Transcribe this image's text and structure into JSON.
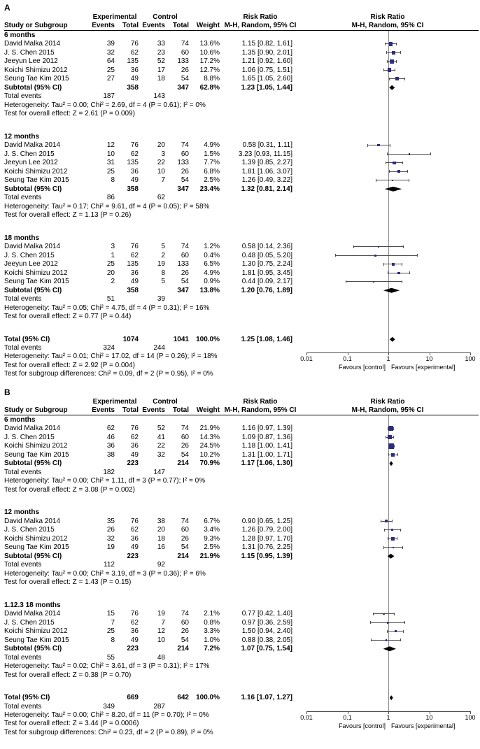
{
  "chart_data": [
    {
      "type": "forest_plot",
      "panel": "A",
      "effect_measure": "Risk Ratio",
      "header": {
        "experimental": "Experimental",
        "control": "Control",
        "risk_ratio": "Risk Ratio",
        "study": "Study or Subgroup",
        "events": "Events",
        "total": "Total",
        "weight": "Weight",
        "ci": "M-H, Random, 95% CI"
      },
      "axis": {
        "scale": "log",
        "ticks": [
          0.01,
          0.1,
          1,
          10,
          100
        ],
        "favours_left": "Favours [control]",
        "favours_right": "Favours [experimental]"
      },
      "rows": [
        {
          "k": "title",
          "t": "6 months"
        },
        {
          "k": "study",
          "n": "David Malka 2014",
          "ee": 39,
          "et": 76,
          "ce": 33,
          "ct": 74,
          "w": "13.6%",
          "ci": "1.15 [0.82, 1.61]",
          "v": 1.15,
          "lo": 0.82,
          "hi": 1.61,
          "wt": 13.6
        },
        {
          "k": "study",
          "n": "J. S. Chen 2015",
          "ee": 32,
          "et": 62,
          "ce": 23,
          "ct": 60,
          "w": "10.6%",
          "ci": "1.35 [0.90, 2.01]",
          "v": 1.35,
          "lo": 0.9,
          "hi": 2.01,
          "wt": 10.6
        },
        {
          "k": "study",
          "n": "Jeeyun Lee 2012",
          "ee": 64,
          "et": 135,
          "ce": 52,
          "ct": 133,
          "w": "17.2%",
          "ci": "1.21 [0.92, 1.60]",
          "v": 1.21,
          "lo": 0.92,
          "hi": 1.6,
          "wt": 17.2
        },
        {
          "k": "study",
          "n": "Koichi Shimizu 2012",
          "ee": 25,
          "et": 36,
          "ce": 17,
          "ct": 26,
          "w": "12.7%",
          "ci": "1.06 [0.75, 1.51]",
          "v": 1.06,
          "lo": 0.75,
          "hi": 1.51,
          "wt": 12.7
        },
        {
          "k": "study",
          "n": "Seung Tae Kim 2015",
          "ee": 27,
          "et": 49,
          "ce": 18,
          "ct": 54,
          "w": "8.8%",
          "ci": "1.65 [1.05, 2.60]",
          "v": 1.65,
          "lo": 1.05,
          "hi": 2.6,
          "wt": 8.8
        },
        {
          "k": "subtotal",
          "n": "Subtotal (95% CI)",
          "et": 358,
          "ct": 347,
          "w": "62.8%",
          "ci": "1.23 [1.05, 1.44]",
          "v": 1.23,
          "lo": 1.05,
          "hi": 1.44
        },
        {
          "k": "events",
          "n": "Total events",
          "ee": 187,
          "ce": 143
        },
        {
          "k": "note",
          "t": "Heterogeneity: Tau² = 0.00; Chi² = 2.69, df = 4 (P = 0.61); I² = 0%"
        },
        {
          "k": "note",
          "t": "Test for overall effect: Z = 2.61 (P = 0.009)"
        },
        {
          "k": "spacer"
        },
        {
          "k": "title",
          "t": "12 months"
        },
        {
          "k": "study",
          "n": "David Malka 2014",
          "ee": 12,
          "et": 76,
          "ce": 20,
          "ct": 74,
          "w": "4.9%",
          "ci": "0.58 [0.31, 1.11]",
          "v": 0.58,
          "lo": 0.31,
          "hi": 1.11,
          "wt": 4.9
        },
        {
          "k": "study",
          "n": "J. S. Chen 2015",
          "ee": 10,
          "et": 62,
          "ce": 3,
          "ct": 60,
          "w": "1.5%",
          "ci": "3.23 [0.93, 11.15]",
          "v": 3.23,
          "lo": 0.93,
          "hi": 11.15,
          "wt": 1.5
        },
        {
          "k": "study",
          "n": "Jeeyun Lee 2012",
          "ee": 31,
          "et": 135,
          "ce": 22,
          "ct": 133,
          "w": "7.7%",
          "ci": "1.39 [0.85, 2.27]",
          "v": 1.39,
          "lo": 0.85,
          "hi": 2.27,
          "wt": 7.7
        },
        {
          "k": "study",
          "n": "Koichi Shimizu 2012",
          "ee": 25,
          "et": 36,
          "ce": 10,
          "ct": 26,
          "w": "6.8%",
          "ci": "1.81 [1.06, 3.07]",
          "v": 1.81,
          "lo": 1.06,
          "hi": 3.07,
          "wt": 6.8
        },
        {
          "k": "study",
          "n": "Seung Tae Kim 2015",
          "ee": 8,
          "et": 49,
          "ce": 7,
          "ct": 54,
          "w": "2.5%",
          "ci": "1.26 [0.49, 3.22]",
          "v": 1.26,
          "lo": 0.49,
          "hi": 3.22,
          "wt": 2.5
        },
        {
          "k": "subtotal",
          "n": "Subtotal (95% CI)",
          "et": 358,
          "ct": 347,
          "w": "23.4%",
          "ci": "1.32 [0.81, 2.14]",
          "v": 1.32,
          "lo": 0.81,
          "hi": 2.14
        },
        {
          "k": "events",
          "n": "Total events",
          "ee": 86,
          "ce": 62
        },
        {
          "k": "note",
          "t": "Heterogeneity: Tau² = 0.17; Chi² = 9.61, df = 4 (P = 0.05); I² = 58%"
        },
        {
          "k": "note",
          "t": "Test for overall effect: Z = 1.13 (P = 0.26)"
        },
        {
          "k": "spacer"
        },
        {
          "k": "title",
          "t": "18 months"
        },
        {
          "k": "study",
          "n": "David Malka 2014",
          "ee": 3,
          "et": 76,
          "ce": 5,
          "ct": 74,
          "w": "1.2%",
          "ci": "0.58 [0.14, 2.36]",
          "v": 0.58,
          "lo": 0.14,
          "hi": 2.36,
          "wt": 1.2
        },
        {
          "k": "study",
          "n": "J. S. Chen 2015",
          "ee": 1,
          "et": 62,
          "ce": 2,
          "ct": 60,
          "w": "0.4%",
          "ci": "0.48 [0.05, 5.20]",
          "v": 0.48,
          "lo": 0.05,
          "hi": 5.2,
          "wt": 0.4
        },
        {
          "k": "study",
          "n": "Jeeyun Lee 2012",
          "ee": 25,
          "et": 135,
          "ce": 19,
          "ct": 133,
          "w": "6.5%",
          "ci": "1.30 [0.75, 2.24]",
          "v": 1.3,
          "lo": 0.75,
          "hi": 2.24,
          "wt": 6.5
        },
        {
          "k": "study",
          "n": "Koichi Shimizu 2012",
          "ee": 20,
          "et": 36,
          "ce": 8,
          "ct": 26,
          "w": "4.9%",
          "ci": "1.81 [0.95, 3.45]",
          "v": 1.81,
          "lo": 0.95,
          "hi": 3.45,
          "wt": 4.9
        },
        {
          "k": "study",
          "n": "Seung Tae Kim 2015",
          "ee": 2,
          "et": 49,
          "ce": 5,
          "ct": 54,
          "w": "0.9%",
          "ci": "0.44 [0.09, 2.17]",
          "v": 0.44,
          "lo": 0.09,
          "hi": 2.17,
          "wt": 0.9
        },
        {
          "k": "subtotal",
          "n": "Subtotal (95% CI)",
          "et": 358,
          "ct": 347,
          "w": "13.8%",
          "ci": "1.20 [0.76, 1.89]",
          "v": 1.2,
          "lo": 0.76,
          "hi": 1.89
        },
        {
          "k": "events",
          "n": "Total events",
          "ee": 51,
          "ce": 39
        },
        {
          "k": "note",
          "t": "Heterogeneity: Tau² = 0.05; Chi² = 4.75, df = 4 (P = 0.31); I² = 16%"
        },
        {
          "k": "note",
          "t": "Test for overall effect: Z = 0.77 (P = 0.44)"
        },
        {
          "k": "spacer"
        },
        {
          "k": "total",
          "n": "Total (95% CI)",
          "et": 1074,
          "ct": 1041,
          "w": "100.0%",
          "ci": "1.25 [1.08, 1.46]",
          "v": 1.25,
          "lo": 1.08,
          "hi": 1.46
        },
        {
          "k": "events",
          "n": "Total events",
          "ee": 324,
          "ce": 244
        }
      ],
      "footnotes": [
        "Heterogeneity: Tau² = 0.01; Chi² = 17.02, df = 14 (P = 0.26); I² = 18%",
        "Test for overall effect: Z = 2.92 (P = 0.004)",
        "Test for subgroup differences: Chi² = 0.09, df = 2 (P = 0.95), I² = 0%"
      ]
    },
    {
      "type": "forest_plot",
      "panel": "B",
      "effect_measure": "Risk Ratio",
      "header": {
        "experimental": "Experimental",
        "control": "Control",
        "risk_ratio": "Risk Ratio",
        "study": "Study or Subgroup",
        "events": "Events",
        "total": "Total",
        "weight": "Weight",
        "ci": "M-H, Random, 95% CI"
      },
      "axis": {
        "scale": "log",
        "ticks": [
          0.01,
          0.1,
          1,
          10,
          100
        ],
        "favours_left": "Favours [control]",
        "favours_right": "Favours [experimental]"
      },
      "rows": [
        {
          "k": "title",
          "t": "6 months"
        },
        {
          "k": "study",
          "n": "David Malka 2014",
          "ee": 62,
          "et": 76,
          "ce": 52,
          "ct": 74,
          "w": "21.9%",
          "ci": "1.16 [0.97, 1.39]",
          "v": 1.16,
          "lo": 0.97,
          "hi": 1.39,
          "wt": 21.9
        },
        {
          "k": "study",
          "n": "J. S. Chen 2015",
          "ee": 46,
          "et": 62,
          "ce": 41,
          "ct": 60,
          "w": "14.3%",
          "ci": "1.09 [0.87, 1.36]",
          "v": 1.09,
          "lo": 0.87,
          "hi": 1.36,
          "wt": 14.3
        },
        {
          "k": "study",
          "n": "Koichi Shimizu 2012",
          "ee": 36,
          "et": 36,
          "ce": 22,
          "ct": 26,
          "w": "24.5%",
          "ci": "1.18 [1.00, 1.41]",
          "v": 1.18,
          "lo": 1.0,
          "hi": 1.41,
          "wt": 24.5
        },
        {
          "k": "study",
          "n": "Seung Tae Kim 2015",
          "ee": 38,
          "et": 49,
          "ce": 32,
          "ct": 54,
          "w": "10.2%",
          "ci": "1.31 [1.00, 1.71]",
          "v": 1.31,
          "lo": 1.0,
          "hi": 1.71,
          "wt": 10.2
        },
        {
          "k": "subtotal",
          "n": "Subtotal (95% CI)",
          "et": 223,
          "ct": 214,
          "w": "70.9%",
          "ci": "1.17 [1.06, 1.30]",
          "v": 1.17,
          "lo": 1.06,
          "hi": 1.3
        },
        {
          "k": "events",
          "n": "Total events",
          "ee": 182,
          "ce": 147
        },
        {
          "k": "note",
          "t": "Heterogeneity: Tau² = 0.00; Chi² = 1.11, df = 3 (P = 0.77); I² = 0%"
        },
        {
          "k": "note",
          "t": "Test for overall effect: Z = 3.08 (P = 0.002)"
        },
        {
          "k": "spacer"
        },
        {
          "k": "title",
          "t": "12 months"
        },
        {
          "k": "study",
          "n": "David Malka 2014",
          "ee": 35,
          "et": 76,
          "ce": 38,
          "ct": 74,
          "w": "6.7%",
          "ci": "0.90 [0.65, 1.25]",
          "v": 0.9,
          "lo": 0.65,
          "hi": 1.25,
          "wt": 6.7
        },
        {
          "k": "study",
          "n": "J. S. Chen 2015",
          "ee": 26,
          "et": 62,
          "ce": 20,
          "ct": 60,
          "w": "3.4%",
          "ci": "1.26 [0.79, 2.00]",
          "v": 1.26,
          "lo": 0.79,
          "hi": 2.0,
          "wt": 3.4
        },
        {
          "k": "study",
          "n": "Koichi Shimizu 2012",
          "ee": 32,
          "et": 36,
          "ce": 18,
          "ct": 26,
          "w": "9.3%",
          "ci": "1.28 [0.97, 1.70]",
          "v": 1.28,
          "lo": 0.97,
          "hi": 1.7,
          "wt": 9.3
        },
        {
          "k": "study",
          "n": "Seung Tae Kim 2015",
          "ee": 19,
          "et": 49,
          "ce": 16,
          "ct": 54,
          "w": "2.5%",
          "ci": "1.31 [0.76, 2.25]",
          "v": 1.31,
          "lo": 0.76,
          "hi": 2.25,
          "wt": 2.5
        },
        {
          "k": "subtotal",
          "n": "Subtotal (95% CI)",
          "et": 223,
          "ct": 214,
          "w": "21.9%",
          "ci": "1.15 [0.95, 1.39]",
          "v": 1.15,
          "lo": 0.95,
          "hi": 1.39
        },
        {
          "k": "events",
          "n": "Total events",
          "ee": 112,
          "ce": 92
        },
        {
          "k": "note",
          "t": "Heterogeneity: Tau² = 0.00; Chi² = 3.19, df = 3 (P = 0.36); I² = 6%"
        },
        {
          "k": "note",
          "t": "Test for overall effect: Z = 1.43 (P = 0.15)"
        },
        {
          "k": "spacer"
        },
        {
          "k": "title",
          "t": "1.12.3 18 months"
        },
        {
          "k": "study",
          "n": "David Malka 2014",
          "ee": 15,
          "et": 76,
          "ce": 19,
          "ct": 74,
          "w": "2.1%",
          "ci": "0.77 [0.42, 1.40]",
          "v": 0.77,
          "lo": 0.42,
          "hi": 1.4,
          "wt": 2.1
        },
        {
          "k": "study",
          "n": "J. S. Chen 2015",
          "ee": 7,
          "et": 62,
          "ce": 7,
          "ct": 60,
          "w": "0.8%",
          "ci": "0.97 [0.36, 2.59]",
          "v": 0.97,
          "lo": 0.36,
          "hi": 2.59,
          "wt": 0.8
        },
        {
          "k": "study",
          "n": "Koichi Shimizu 2012",
          "ee": 25,
          "et": 36,
          "ce": 12,
          "ct": 26,
          "w": "3.3%",
          "ci": "1.50 [0.94, 2.40]",
          "v": 1.5,
          "lo": 0.94,
          "hi": 2.4,
          "wt": 3.3
        },
        {
          "k": "study",
          "n": "Seung Tae Kim 2015",
          "ee": 8,
          "et": 49,
          "ce": 10,
          "ct": 54,
          "w": "1.0%",
          "ci": "0.88 [0.38, 2.05]",
          "v": 0.88,
          "lo": 0.38,
          "hi": 2.05,
          "wt": 1.0
        },
        {
          "k": "subtotal",
          "n": "Subtotal (95% CI)",
          "et": 223,
          "ct": 214,
          "w": "7.2%",
          "ci": "1.07 [0.75, 1.54]",
          "v": 1.07,
          "lo": 0.75,
          "hi": 1.54
        },
        {
          "k": "events",
          "n": "Total events",
          "ee": 55,
          "ce": 48
        },
        {
          "k": "note",
          "t": "Heterogeneity: Tau² = 0.02; Chi² = 3.61, df = 3 (P = 0.31); I² = 17%"
        },
        {
          "k": "note",
          "t": "Test for overall effect: Z = 0.38 (P = 0.70)"
        },
        {
          "k": "spacer"
        },
        {
          "k": "total",
          "n": "Total (95% CI)",
          "et": 669,
          "ct": 642,
          "w": "100.0%",
          "ci": "1.16 [1.07, 1.27]",
          "v": 1.16,
          "lo": 1.07,
          "hi": 1.27
        },
        {
          "k": "events",
          "n": "Total events",
          "ee": 349,
          "ce": 287
        }
      ],
      "footnotes": [
        "Heterogeneity: Tau² = 0.00; Chi² = 8.20, df = 11 (P = 0.70); I² = 0%",
        "Test for overall effect: Z = 3.44 (P = 0.0006)",
        "Test for subgroup differences: Chi² = 0.23, df = 2 (P = 0.89), I² = 0%"
      ]
    }
  ]
}
